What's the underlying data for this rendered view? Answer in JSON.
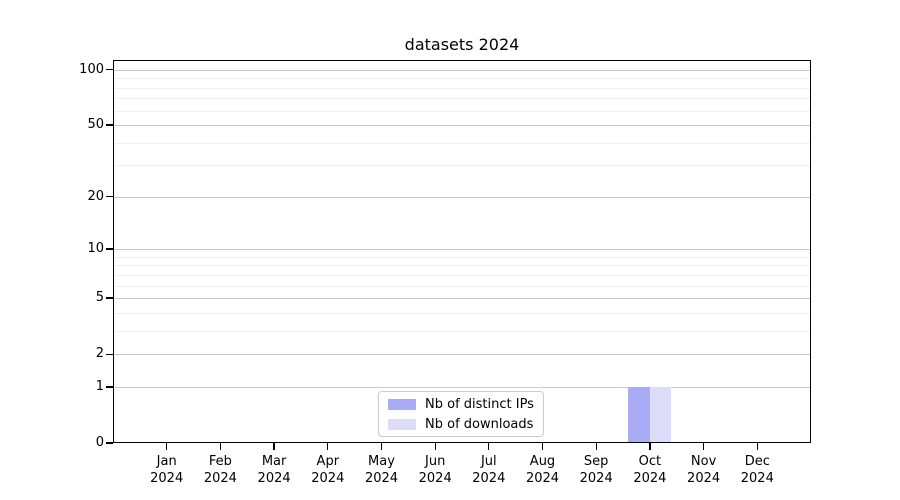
{
  "chart_data": {
    "type": "bar",
    "title": "datasets 2024",
    "categories": [
      "Jan 2024",
      "Feb 2024",
      "Mar 2024",
      "Apr 2024",
      "May 2024",
      "Jun 2024",
      "Jul 2024",
      "Aug 2024",
      "Sep 2024",
      "Oct 2024",
      "Nov 2024",
      "Dec 2024"
    ],
    "series": [
      {
        "name": "Nb of distinct IPs",
        "color": "#a9abf4",
        "values": [
          0,
          0,
          0,
          0,
          0,
          0,
          0,
          0,
          0,
          1,
          0,
          0
        ]
      },
      {
        "name": "Nb of downloads",
        "color": "#dcdcf9",
        "values": [
          0,
          0,
          0,
          0,
          0,
          0,
          0,
          0,
          0,
          1,
          0,
          0
        ]
      }
    ],
    "xlabel": "",
    "ylabel": "",
    "y_scale": "log10(1+x)",
    "ylim": [
      0,
      113
    ],
    "y_major_ticks": [
      0,
      1,
      2,
      5,
      10,
      20,
      50,
      100
    ],
    "y_minor_ticks": [
      3,
      4,
      6,
      7,
      8,
      9,
      30,
      40,
      60,
      70,
      80,
      90
    ],
    "grid": "horizontal, major and minor, light gray",
    "legend": {
      "position": "lower center inside plot",
      "entries": [
        "Nb of distinct IPs",
        "Nb of downloads"
      ]
    }
  }
}
